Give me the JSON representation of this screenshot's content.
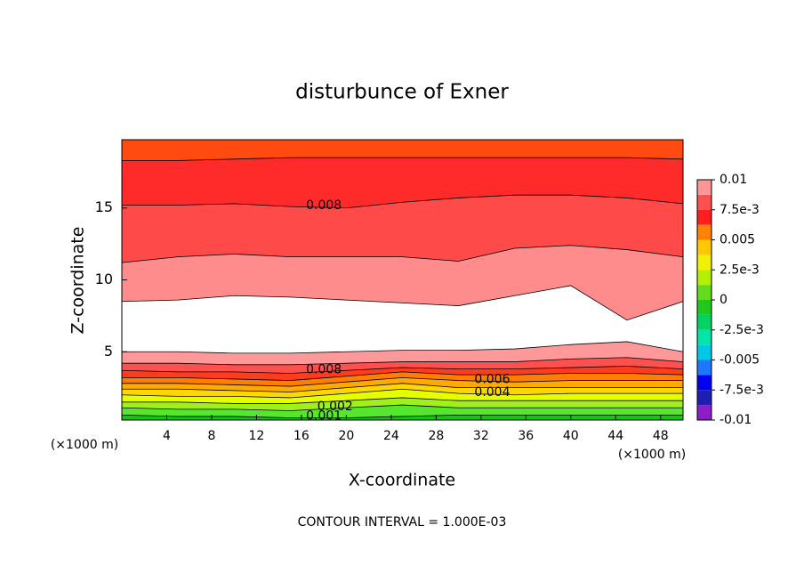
{
  "chart_data": {
    "type": "contour",
    "title": "disturbunce of Exner",
    "x_label": "X-coordinate",
    "y_label": "Z-coordinate",
    "x_unit_left": "(×1000 m)",
    "x_unit_right": "(×1000 m)",
    "footnote": "CONTOUR INTERVAL = 1.000E-03",
    "xlim": [
      0,
      50
    ],
    "ylim": [
      0.25,
      19.75
    ],
    "xticks": [
      4,
      8,
      12,
      16,
      20,
      24,
      28,
      32,
      36,
      40,
      44,
      48
    ],
    "yticks": [
      5,
      10,
      15
    ],
    "x": [
      0,
      5,
      10,
      15,
      20,
      25,
      30,
      35,
      40,
      45,
      50
    ],
    "contours": [
      {
        "level": 0.001,
        "values": [
          0.6,
          0.5,
          0.5,
          0.4,
          0.4,
          0.5,
          0.6,
          0.6,
          0.6,
          0.6,
          0.6
        ],
        "label_x": 18
      },
      {
        "level": 0.002,
        "values": [
          1.1,
          1.0,
          1.0,
          0.9,
          1.1,
          1.3,
          1.1,
          1.1,
          1.1,
          1.1,
          1.1
        ],
        "label_x": 19
      },
      {
        "level": 0.003,
        "values": [
          1.5,
          1.5,
          1.4,
          1.4,
          1.6,
          1.8,
          1.6,
          1.6,
          1.6,
          1.6,
          1.6
        ]
      },
      {
        "level": 0.004,
        "values": [
          2.0,
          1.9,
          1.9,
          1.8,
          2.1,
          2.4,
          2.1,
          2.0,
          2.1,
          2.1,
          2.1
        ],
        "label_x": 33
      },
      {
        "level": 0.005,
        "values": [
          2.4,
          2.4,
          2.3,
          2.2,
          2.5,
          2.8,
          2.5,
          2.5,
          2.5,
          2.5,
          2.5
        ]
      },
      {
        "level": 0.006,
        "values": [
          2.8,
          2.8,
          2.7,
          2.6,
          2.9,
          3.2,
          3.0,
          2.9,
          3.0,
          3.0,
          3.0
        ],
        "label_x": 33
      },
      {
        "level": 0.007,
        "values": [
          3.2,
          3.2,
          3.1,
          3.0,
          3.3,
          3.6,
          3.4,
          3.4,
          3.5,
          3.5,
          3.4
        ]
      },
      {
        "level": 0.008,
        "values": [
          3.7,
          3.6,
          3.6,
          3.5,
          3.7,
          3.9,
          3.8,
          3.8,
          3.9,
          4.0,
          3.8
        ],
        "label_x": 18
      },
      {
        "level": 0.009,
        "values": [
          4.2,
          4.2,
          4.1,
          4.1,
          4.2,
          4.3,
          4.3,
          4.3,
          4.5,
          4.6,
          4.3
        ]
      },
      {
        "level": 0.01,
        "values": [
          5.0,
          5.0,
          4.9,
          4.9,
          5.0,
          5.1,
          5.1,
          5.2,
          5.5,
          5.7,
          5.0
        ]
      },
      {
        "level": 0.01,
        "values": [
          8.5,
          8.6,
          8.9,
          8.8,
          8.6,
          8.4,
          8.2,
          8.9,
          9.6,
          7.2,
          8.5
        ]
      },
      {
        "level": 0.009,
        "values": [
          11.2,
          11.6,
          11.8,
          11.6,
          11.6,
          11.6,
          11.3,
          12.2,
          12.4,
          12.1,
          11.6
        ]
      },
      {
        "level": 0.008,
        "values": [
          15.2,
          15.2,
          15.3,
          15.1,
          15.0,
          15.4,
          15.7,
          15.9,
          15.9,
          15.7,
          15.3
        ],
        "label_x": 18
      },
      {
        "level": 0.007,
        "values": [
          18.3,
          18.3,
          18.4,
          18.5,
          18.5,
          18.5,
          18.5,
          18.5,
          18.5,
          18.5,
          18.4
        ]
      }
    ],
    "fills": [
      "#11c811",
      "#55e62d",
      "#a0f01e",
      "#e6ff00",
      "#ffd700",
      "#ffaa00",
      "#ff7d00",
      "#ff3c1e",
      "#ff5050",
      "#ff9999",
      "#ffffff",
      "#ff8c8c",
      "#ff4a4a",
      "#ff2a2a",
      "#ff4a10"
    ],
    "colorbar": {
      "levels": [
        -0.01,
        -0.00875,
        -0.0075,
        -0.00625,
        -0.005,
        -0.00375,
        -0.0025,
        -0.00125,
        0,
        0.00125,
        0.0025,
        0.00375,
        0.005,
        0.00625,
        0.0075,
        0.00875,
        0.01
      ],
      "colors": [
        "#8c1ec8",
        "#1e1eb4",
        "#0000f0",
        "#1e78ff",
        "#00c8e6",
        "#00e6aa",
        "#00d264",
        "#1ec81e",
        "#64dc1e",
        "#b4f000",
        "#f0f000",
        "#ffc800",
        "#ff8200",
        "#ff1e1e",
        "#ff5050",
        "#ff9696"
      ],
      "ticks": [
        0.01,
        {
          "value": 0.0075,
          "label": "7.5e-3"
        },
        0.005,
        {
          "value": 0.0025,
          "label": "2.5e-3"
        },
        0,
        {
          "value": -0.0025,
          "label": "-2.5e-3"
        },
        -0.005,
        {
          "value": -0.0075,
          "label": "-7.5e-3"
        },
        -0.01
      ]
    }
  }
}
